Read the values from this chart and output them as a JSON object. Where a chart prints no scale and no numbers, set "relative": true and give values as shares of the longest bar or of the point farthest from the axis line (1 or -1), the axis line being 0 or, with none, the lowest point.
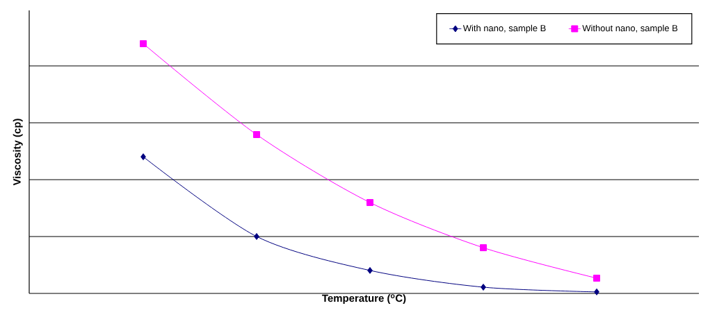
{
  "chart_data": {
    "type": "line",
    "relative": true,
    "xlabel": "Temperature ($^{o}$C)",
    "ylabel": "Viscosity (cp)",
    "categories": [
      null,
      null,
      null,
      null,
      null
    ],
    "grid": "y",
    "legend": "top right",
    "line_style": "solid",
    "series": [
      {
        "name": "With nano, sample B",
        "color": "#000080",
        "marker": "diamond",
        "values": [
          0.547,
          0.228,
          0.092,
          0.025,
          0.006
        ]
      },
      {
        "name": "Without nano, sample B",
        "color": "#ff00ff",
        "marker": "square",
        "values": [
          1,
          0.636,
          0.364,
          0.183,
          0.061
        ]
      }
    ]
  }
}
